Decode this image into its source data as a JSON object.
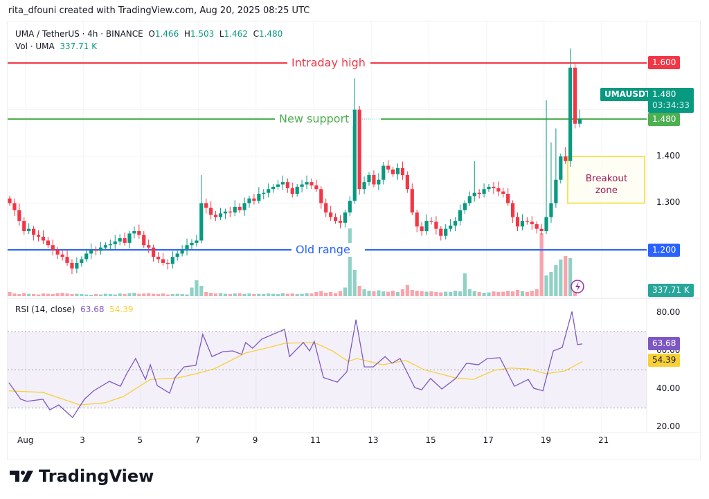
{
  "header": {
    "credit": "rita_dfouni created with TradingView.com, Aug 20, 2025 08:25 UTC"
  },
  "legend": {
    "symbol": "UMA / TetherUS · 4h · BINANCE",
    "o_label": "O",
    "o": "1.466",
    "h_label": "H",
    "h": "1.503",
    "l_label": "L",
    "l": "1.462",
    "c_label": "C",
    "c": "1.480",
    "vol_label": "Vol · UMA",
    "vol": "337.71 K"
  },
  "annotations": {
    "intraday_high": {
      "text": "Intraday high",
      "price": 1.6,
      "color": "#f23645",
      "label": "1.600"
    },
    "new_support": {
      "text": "New support",
      "price": 1.48,
      "color": "#4caf50",
      "label": "1.480"
    },
    "old_range": {
      "text": "Old range",
      "price": 1.2,
      "color": "#2962ff",
      "label": "1.200"
    },
    "breakout_zone": {
      "line1": "Breakout",
      "line2": "zone",
      "top": 1.4,
      "bottom": 1.3,
      "border": "#f5e45c"
    }
  },
  "price_axis": {
    "ticks": [
      "1.400",
      "1.300"
    ],
    "ticker": "UMAUSDT",
    "last": "1.480",
    "countdown": "03:34:33",
    "volume_label": "337.71 K"
  },
  "colors": {
    "up": "#089981",
    "down": "#f23645",
    "rsi": "#7e57c2",
    "rsi_ma": "#f7d038"
  },
  "candles": {
    "first_open": 1.31,
    "closes": [
      1.3,
      1.285,
      1.262,
      1.24,
      1.245,
      1.232,
      1.228,
      1.22,
      1.21,
      1.2,
      1.19,
      1.185,
      1.172,
      1.16,
      1.172,
      1.18,
      1.192,
      1.2,
      1.198,
      1.205,
      1.21,
      1.212,
      1.218,
      1.225,
      1.215,
      1.235,
      1.24,
      1.232,
      1.21,
      1.205,
      1.185,
      1.18,
      1.172,
      1.17,
      1.185,
      1.192,
      1.2,
      1.21,
      1.215,
      1.22,
      1.3,
      1.29,
      1.275,
      1.27,
      1.278,
      1.282,
      1.28,
      1.292,
      1.285,
      1.3,
      1.31,
      1.305,
      1.32,
      1.322,
      1.33,
      1.335,
      1.34,
      1.345,
      1.332,
      1.32,
      1.335,
      1.34,
      1.345,
      1.338,
      1.33,
      1.3,
      1.28,
      1.27,
      1.262,
      1.258,
      1.28,
      1.305,
      1.5,
      1.33,
      1.345,
      1.36,
      1.34,
      1.35,
      1.38,
      1.372,
      1.362,
      1.375,
      1.36,
      1.33,
      1.28,
      1.25,
      1.24,
      1.262,
      1.26,
      1.245,
      1.23,
      1.245,
      1.252,
      1.262,
      1.285,
      1.3,
      1.315,
      1.322,
      1.32,
      1.33,
      1.335,
      1.332,
      1.325,
      1.32,
      1.3,
      1.27,
      1.25,
      1.262,
      1.26,
      1.255,
      1.245,
      1.24,
      1.27,
      1.3,
      1.35,
      1.4,
      1.39,
      1.59,
      1.47,
      1.48
    ],
    "wick_highs": {
      "40": 1.36,
      "72": 1.567,
      "97": 1.39,
      "112": 1.52,
      "113": 1.43,
      "114": 1.46,
      "116": 1.42,
      "117": 1.631,
      "119": 1.5
    },
    "volumes_k": [
      120,
      80,
      60,
      90,
      70,
      60,
      50,
      80,
      70,
      60,
      90,
      100,
      80,
      60,
      70,
      60,
      50,
      40,
      60,
      50,
      70,
      60,
      50,
      80,
      60,
      90,
      100,
      70,
      80,
      90,
      70,
      60,
      80,
      50,
      60,
      70,
      60,
      50,
      250,
      460,
      300,
      120,
      100,
      80,
      90,
      70,
      60,
      80,
      90,
      70,
      80,
      60,
      70,
      60,
      80,
      70,
      60,
      90,
      70,
      80,
      60,
      70,
      90,
      80,
      120,
      150,
      100,
      120,
      90,
      150,
      250,
      1960,
      760,
      300,
      200,
      160,
      150,
      170,
      140,
      130,
      160,
      120,
      200,
      320,
      180,
      160,
      150,
      130,
      140,
      120,
      110,
      130,
      120,
      160,
      140,
      660,
      200,
      150,
      120,
      100,
      110,
      140,
      120,
      130,
      160,
      140,
      180,
      150,
      120,
      160,
      200,
      1820,
      600,
      700,
      900,
      1060,
      1160,
      1100,
      337.71
    ]
  },
  "dates": [
    "Aug",
    "3",
    "5",
    "7",
    "9",
    "11",
    "13",
    "15",
    "17",
    "19",
    "21"
  ],
  "rsi": {
    "label": "RSI (14, close)",
    "value": "63.68",
    "ma_value": "54.39",
    "ticks": [
      "80.00",
      "60.00",
      "40.00",
      "20.00"
    ],
    "bands": [
      70,
      50,
      30
    ],
    "line": [
      [
        0.42,
        43.3
      ],
      [
        0.83,
        34.6
      ],
      [
        1.05,
        33.5
      ],
      [
        1.6,
        34.6
      ],
      [
        1.84,
        29
      ],
      [
        2.15,
        31.6
      ],
      [
        2.63,
        25
      ],
      [
        3.04,
        34.6
      ],
      [
        3.36,
        39
      ],
      [
        3.91,
        44
      ],
      [
        4.29,
        41.4
      ],
      [
        4.53,
        48.6
      ],
      [
        4.82,
        56
      ],
      [
        5.16,
        45
      ],
      [
        5.33,
        52.7
      ],
      [
        5.57,
        41.8
      ],
      [
        6.0,
        37.8
      ],
      [
        6.19,
        46
      ],
      [
        6.5,
        51.6
      ],
      [
        6.91,
        52.4
      ],
      [
        7.15,
        68.7
      ],
      [
        7.47,
        57
      ],
      [
        7.85,
        59.6
      ],
      [
        8.19,
        60
      ],
      [
        8.5,
        58.2
      ],
      [
        8.64,
        64.4
      ],
      [
        8.88,
        61.4
      ],
      [
        9.2,
        66.2
      ],
      [
        9.99,
        71.3
      ],
      [
        10.16,
        57
      ],
      [
        10.64,
        64.4
      ],
      [
        10.86,
        60
      ],
      [
        11.02,
        65
      ],
      [
        11.34,
        46
      ],
      [
        11.82,
        43.6
      ],
      [
        12.15,
        49
      ],
      [
        12.47,
        76.4
      ],
      [
        12.76,
        51.6
      ],
      [
        13.07,
        51.6
      ],
      [
        13.48,
        57
      ],
      [
        13.72,
        53.5
      ],
      [
        14.0,
        56
      ],
      [
        14.27,
        48
      ],
      [
        14.51,
        40.7
      ],
      [
        14.75,
        39.6
      ],
      [
        15.06,
        45.5
      ],
      [
        15.45,
        40
      ],
      [
        15.93,
        45.5
      ],
      [
        16.31,
        53.5
      ],
      [
        16.72,
        52.7
      ],
      [
        17.03,
        56
      ],
      [
        17.47,
        56.4
      ],
      [
        17.97,
        41.4
      ],
      [
        18.45,
        45
      ],
      [
        18.64,
        40.4
      ],
      [
        18.96,
        39
      ],
      [
        19.32,
        60
      ],
      [
        19.63,
        61.8
      ],
      [
        19.97,
        80.7
      ],
      [
        20.16,
        63.3
      ],
      [
        20.33,
        63.68
      ]
    ],
    "ma": [
      [
        0.42,
        39
      ],
      [
        1.6,
        38.2
      ],
      [
        2.88,
        31.6
      ],
      [
        3.74,
        32.7
      ],
      [
        4.39,
        36
      ],
      [
        5.33,
        45
      ],
      [
        6.29,
        45.8
      ],
      [
        6.91,
        48
      ],
      [
        7.54,
        50.5
      ],
      [
        8.64,
        58.9
      ],
      [
        9.44,
        61.8
      ],
      [
        10.0,
        64
      ],
      [
        11.02,
        64.4
      ],
      [
        11.65,
        60
      ],
      [
        12.2,
        54.5
      ],
      [
        12.51,
        56
      ],
      [
        13.4,
        52.7
      ],
      [
        14.2,
        55
      ],
      [
        14.82,
        50.2
      ],
      [
        15.93,
        45.8
      ],
      [
        16.55,
        45
      ],
      [
        17.27,
        49.8
      ],
      [
        17.83,
        51
      ],
      [
        18.45,
        50.5
      ],
      [
        19.08,
        48
      ],
      [
        19.73,
        49.5
      ],
      [
        20.33,
        54.39
      ]
    ]
  },
  "footer": {
    "logo_text": "TradingView"
  }
}
